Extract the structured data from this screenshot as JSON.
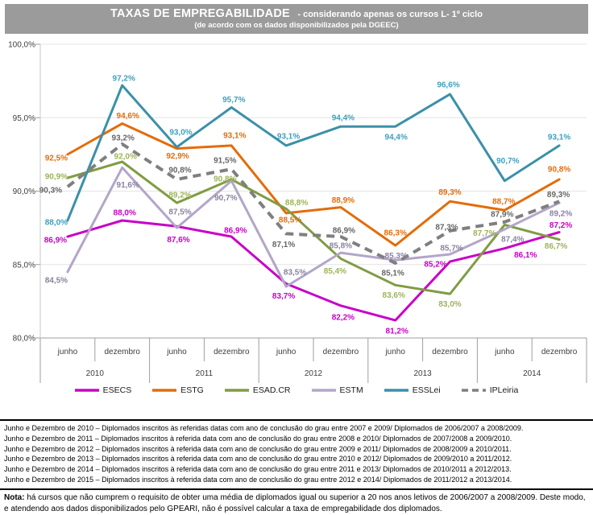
{
  "header": {
    "title_main": "TAXAS DE EMPREGABILIDADE",
    "title_suffix": "- considerando apenas os cursos L- 1º ciclo",
    "subtitle": "(de acordo com os dados disponibilizados pela DGEEC)"
  },
  "chart_data": {
    "type": "line",
    "title": "TAXAS DE EMPREGABILIDADE - considerando apenas os cursos L- 1º ciclo",
    "ylim": [
      80,
      100
    ],
    "grid": true,
    "legend_position": "bottom",
    "y_ticks": [
      [
        100,
        "100,0%"
      ],
      [
        95,
        "95,0%"
      ],
      [
        90,
        "90,0%"
      ],
      [
        85,
        "85,0%"
      ],
      [
        80,
        "80,0%"
      ]
    ],
    "x_axis": {
      "month_labels": [
        "junho",
        "dezembro"
      ],
      "years": [
        "2010",
        "2011",
        "2012",
        "2013",
        "2014"
      ]
    },
    "series": [
      {
        "name": "ESECS",
        "color": "#C800C8",
        "label_color": "#C800C8",
        "dashed": false,
        "values": [
          86.9,
          88.0,
          87.6,
          86.9,
          83.7,
          82.2,
          81.2,
          85.2,
          86.1,
          87.2
        ],
        "label_offsets": [
          [
            -15,
            4
          ],
          [
            3,
            -10
          ],
          [
            2,
            16
          ],
          [
            5,
            -8
          ],
          [
            -3,
            15
          ],
          [
            3,
            14
          ],
          [
            2,
            13
          ],
          [
            -18,
            3
          ],
          [
            26,
            8
          ],
          [
            2,
            -9
          ]
        ]
      },
      {
        "name": "ESTG",
        "color": "#E36C09",
        "label_color": "#E36C09",
        "dashed": false,
        "values": [
          92.5,
          94.6,
          92.9,
          93.1,
          88.5,
          88.9,
          86.3,
          89.3,
          88.7,
          90.8
        ],
        "label_offsets": [
          [
            -14,
            4
          ],
          [
            7,
            -10
          ],
          [
            1,
            9
          ],
          [
            4,
            -13
          ],
          [
            5,
            8
          ],
          [
            3,
            -9
          ],
          [
            0,
            -16
          ],
          [
            0,
            -12
          ],
          [
            -1,
            -11
          ],
          [
            0,
            -13
          ]
        ]
      },
      {
        "name": "ESAD.CR",
        "color": "#7F9C43",
        "label_color": "#9CB35A",
        "dashed": false,
        "values": [
          90.9,
          92.0,
          89.2,
          90.8,
          88.8,
          85.4,
          83.6,
          83.0,
          87.7,
          86.7
        ],
        "label_offsets": [
          [
            -14,
            -2
          ],
          [
            4,
            -7
          ],
          [
            4,
            -10
          ],
          [
            -8,
            -1
          ],
          [
            13,
            -8
          ],
          [
            -7,
            15
          ],
          [
            -2,
            12
          ],
          [
            0,
            12
          ],
          [
            -25,
            10
          ],
          [
            -4,
            8
          ]
        ]
      },
      {
        "name": "ESTM",
        "color": "#B3A6C9",
        "label_color": "#8A82A0",
        "dashed": false,
        "values": [
          84.5,
          91.6,
          87.5,
          90.7,
          83.5,
          85.8,
          85.3,
          85.7,
          87.4,
          89.2
        ],
        "label_offsets": [
          [
            -14,
            10
          ],
          [
            7,
            21
          ],
          [
            4,
            -20
          ],
          [
            -7,
            21
          ],
          [
            11,
            -18
          ],
          [
            0,
            -9
          ],
          [
            1,
            -6
          ],
          [
            2,
            -8
          ],
          [
            10,
            12
          ],
          [
            2,
            13
          ]
        ]
      },
      {
        "name": "ESSLei",
        "color": "#3B90A9",
        "label_color": "#3FA0BE",
        "dashed": false,
        "values": [
          88.0,
          97.2,
          93.0,
          95.7,
          93.1,
          94.4,
          94.4,
          96.6,
          90.7,
          93.1
        ],
        "label_offsets": [
          [
            -14,
            2
          ],
          [
            2,
            -9
          ],
          [
            5,
            -19
          ],
          [
            3,
            -10
          ],
          [
            3,
            -12
          ],
          [
            3,
            -11
          ],
          [
            1,
            13
          ],
          [
            -2,
            -12
          ],
          [
            4,
            -25
          ],
          [
            0,
            -11
          ]
        ]
      },
      {
        "name": "IPLeiria",
        "color": "#7F7F7F",
        "label_color": "#666666",
        "dashed": true,
        "values": [
          90.3,
          93.2,
          90.8,
          91.5,
          87.1,
          86.9,
          85.1,
          87.3,
          87.9,
          89.3
        ],
        "label_offsets": [
          [
            -21,
            4
          ],
          [
            1,
            -8
          ],
          [
            4,
            -12
          ],
          [
            -8,
            -11
          ],
          [
            -3,
            13
          ],
          [
            4,
            -8
          ],
          [
            -3,
            12
          ],
          [
            -4,
            -5
          ],
          [
            -3,
            -10
          ],
          [
            -1,
            -9
          ]
        ]
      }
    ]
  },
  "footer": {
    "notes": [
      "Junho e Dezembro de 2010 – Diplomados inscritos às referidas datas com ano de conclusão do grau entre 2007 e 2009/ Diplomados de 2006/2007 a 2008/2009.",
      "Junho e Dezembro de 2011 – Diplomados inscritos à referida data com ano de conclusão do grau entre 2008 e 2010/ Diplomados de 2007/2008 a 2009/2010.",
      "Junho e Dezembro de 2012 – Diplomados inscritos à referida data com ano de conclusão do grau entre 2009 e 2011/ Diplomados de 2008/2009 a 2010/2011.",
      "Junho e Dezembro de 2013 – Diplomados inscritos à referida data com ano de conclusão do grau entre 2010 e 2012/ Diplomados de 2009/2010 a 2011/2012.",
      "Junho e Dezembro de 2014 – Diplomados inscritos à referida data com ano de conclusão do grau entre 2011 e 2013/ Diplomados de 2010/2011 a 2012/2013.",
      "Junho e Dezembro de 2015 – Diplomados inscritos à referida data com ano de conclusão do grau entre 2012 e 2014/ Diplomados de 2011/2012 a 2013/2014."
    ],
    "nota_label": "Nota:",
    "nota_text": " há cursos que não cumprem o requisito de obter uma média de diplomados igual ou superior a 20 nos anos letivos de 2006/2007 a 2008/2009. Deste modo, e atendendo aos dados disponibilizados pelo GPEARI, não é possível calcular a taxa de empregabilidade dos diplomados."
  }
}
